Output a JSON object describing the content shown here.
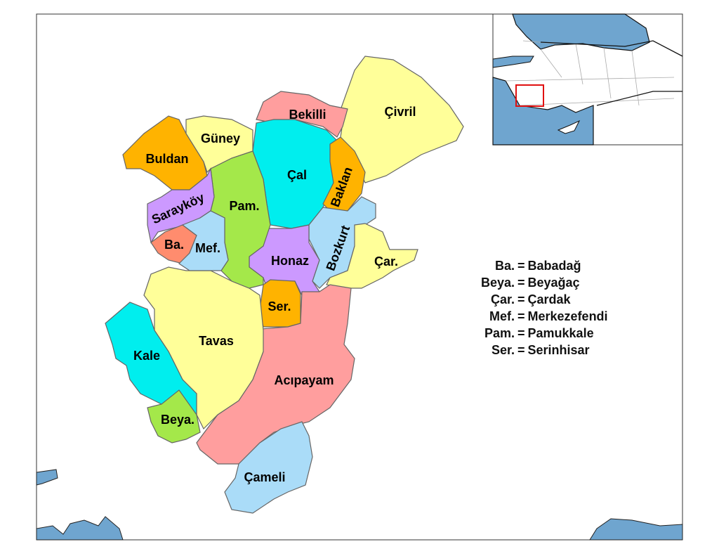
{
  "colors": {
    "sea": "#6fa5cf",
    "yellow": "#ffff99",
    "pink": "#ff9e9e",
    "cyan": "#00eeee",
    "orange": "#ffb300",
    "lime": "#a4e84a",
    "purple": "#cc99ff",
    "light_blue": "#aadcf8",
    "salmon": "#ff8c6e",
    "highlight_box": "#e01010"
  },
  "districts": [
    {
      "id": "civril",
      "label": "Çivril",
      "color": "yellow"
    },
    {
      "id": "bekilli",
      "label": "Bekilli",
      "color": "pink"
    },
    {
      "id": "cal",
      "label": "Çal",
      "color": "cyan"
    },
    {
      "id": "baklan",
      "label": "Baklan",
      "color": "orange"
    },
    {
      "id": "bozkurt",
      "label": "Bozkurt",
      "color": "light_blue"
    },
    {
      "id": "cardak",
      "label": "Çar.",
      "color": "yellow"
    },
    {
      "id": "honaz",
      "label": "Honaz",
      "color": "purple"
    },
    {
      "id": "serinhisar",
      "label": "Ser.",
      "color": "orange"
    },
    {
      "id": "acipayam",
      "label": "Acıpayam",
      "color": "pink"
    },
    {
      "id": "cameli",
      "label": "Çameli",
      "color": "light_blue"
    },
    {
      "id": "tavas",
      "label": "Tavas",
      "color": "yellow"
    },
    {
      "id": "kale",
      "label": "Kale",
      "color": "cyan"
    },
    {
      "id": "beyagac",
      "label": "Beya.",
      "color": "lime"
    },
    {
      "id": "buldan",
      "label": "Buldan",
      "color": "orange"
    },
    {
      "id": "guney",
      "label": "Güney",
      "color": "yellow"
    },
    {
      "id": "pamukkale",
      "label": "Pam.",
      "color": "lime"
    },
    {
      "id": "saraykoy",
      "label": "Sarayköy",
      "color": "purple"
    },
    {
      "id": "babadag",
      "label": "Ba.",
      "color": "salmon"
    },
    {
      "id": "merkezefendi",
      "label": "Mef.",
      "color": "light_blue"
    }
  ],
  "legend": [
    {
      "abbr": "Ba.",
      "eq": "=",
      "full": "Babadağ"
    },
    {
      "abbr": "Beya.",
      "eq": "=",
      "full": "Beyağaç"
    },
    {
      "abbr": "Çar.",
      "eq": "=",
      "full": "Çardak"
    },
    {
      "abbr": "Mef.",
      "eq": "=",
      "full": "Merkezefendi"
    },
    {
      "abbr": "Pam.",
      "eq": "=",
      "full": "Pamukkale"
    },
    {
      "abbr": "Ser.",
      "eq": "=",
      "full": "Serinhisar"
    }
  ]
}
